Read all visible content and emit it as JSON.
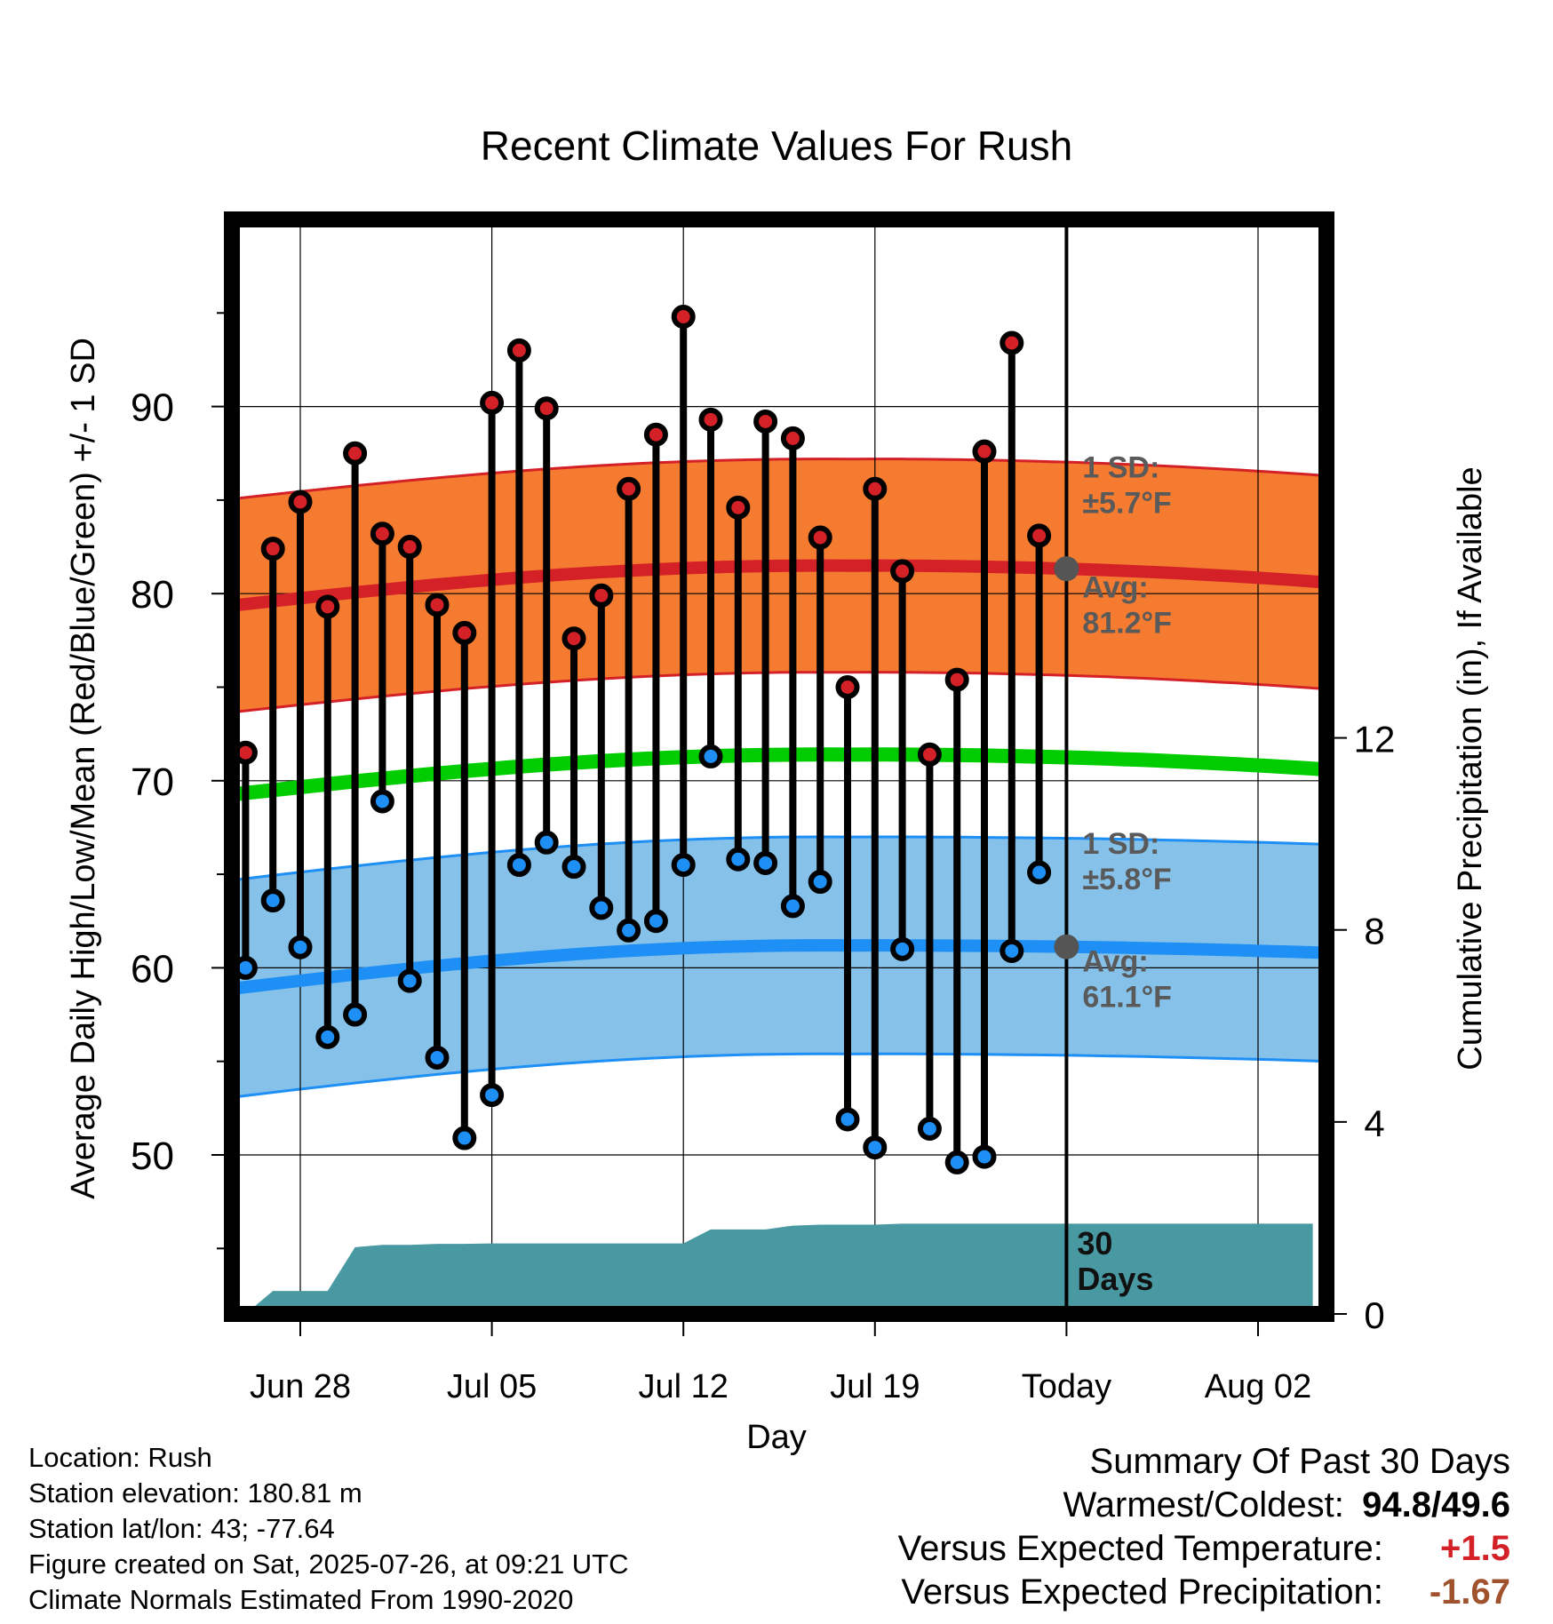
{
  "chart_data": {
    "type": "line",
    "title": "Recent Climate Values For Rush",
    "xlabel": "Day",
    "ylabel": "Average Daily High/Low/Mean (Red/Blue/Green) +/- 1 SD",
    "y2label": "Cumulative Precipitation (in), If Available",
    "ylim": [
      41.5,
      100
    ],
    "y2lim": [
      0,
      22.8
    ],
    "x_tick_labels": [
      "Jun 28",
      "Jul 05",
      "Jul 12",
      "Jul 19",
      "Today",
      "Aug 02"
    ],
    "y_ticks": [
      50,
      60,
      70,
      80,
      90
    ],
    "y2_ticks": [
      0,
      4,
      8,
      12
    ],
    "grid": true,
    "days": [
      "Jun 26",
      "Jun 27",
      "Jun 28",
      "Jun 29",
      "Jun 30",
      "Jul 01",
      "Jul 02",
      "Jul 03",
      "Jul 04",
      "Jul 05",
      "Jul 06",
      "Jul 07",
      "Jul 08",
      "Jul 09",
      "Jul 10",
      "Jul 11",
      "Jul 12",
      "Jul 13",
      "Jul 14",
      "Jul 15",
      "Jul 16",
      "Jul 17",
      "Jul 18",
      "Jul 19",
      "Jul 20",
      "Jul 21",
      "Jul 22",
      "Jul 23",
      "Jul 24",
      "Jul 25"
    ],
    "daily_high": [
      71.5,
      82.4,
      84.9,
      79.3,
      87.5,
      83.2,
      82.5,
      79.4,
      77.9,
      90.2,
      93.0,
      89.9,
      77.6,
      79.9,
      85.6,
      88.5,
      94.8,
      89.3,
      84.6,
      89.2,
      88.3,
      83.0,
      75.0,
      85.6,
      81.2,
      71.4,
      75.4,
      87.6,
      93.4,
      83.1
    ],
    "daily_low": [
      60.0,
      63.6,
      61.1,
      56.3,
      57.5,
      68.9,
      59.3,
      55.2,
      50.9,
      53.2,
      65.5,
      66.7,
      65.4,
      63.2,
      62.0,
      62.5,
      65.5,
      71.3,
      65.8,
      65.6,
      63.3,
      64.6,
      51.9,
      50.4,
      61.0,
      51.4,
      49.6,
      49.9,
      60.9,
      65.1
    ],
    "normal_mean": {
      "start": 69.0,
      "peak": 71.4,
      "end": 70.6
    },
    "normal_high": {
      "start": 79.1,
      "peak": 81.5,
      "end": 80.6,
      "sd": 5.7
    },
    "normal_low": {
      "start": 58.6,
      "peak": 61.2,
      "end": 60.8,
      "sd": 5.8
    },
    "cumulative_precip": {
      "days": [
        "Jun 25",
        "Jun 26",
        "Jun 27",
        "Jun 28",
        "Jun 29",
        "Jun 30",
        "Jul 01",
        "Jul 02",
        "Jul 03",
        "Jul 04",
        "Jul 05",
        "Jul 06",
        "Jul 07",
        "Jul 08",
        "Jul 09",
        "Jul 10",
        "Jul 11",
        "Jul 12",
        "Jul 13",
        "Jul 14",
        "Jul 15",
        "Jul 16",
        "Jul 17",
        "Jul 18",
        "Jul 19",
        "Jul 20",
        "Jul 21",
        "Jul 22",
        "Jul 23",
        "Jul 24",
        "Jul 25",
        "Aug 04"
      ],
      "values": [
        0,
        0,
        0.48,
        0.48,
        0.48,
        1.39,
        1.44,
        1.44,
        1.46,
        1.46,
        1.47,
        1.47,
        1.47,
        1.47,
        1.47,
        1.47,
        1.47,
        1.47,
        1.76,
        1.76,
        1.76,
        1.84,
        1.86,
        1.86,
        1.86,
        1.88,
        1.88,
        1.88,
        1.88,
        1.88,
        1.88,
        1.88
      ]
    },
    "annotations": {
      "high_sd": [
        "1 SD:",
        "±5.7°F"
      ],
      "high_avg": [
        "Avg:",
        "81.2°F"
      ],
      "low_sd": [
        "1 SD:",
        "±5.8°F"
      ],
      "low_avg": [
        "Avg:",
        "61.1°F"
      ],
      "precip_window": [
        "30",
        "Days"
      ]
    },
    "colors": {
      "high_band": "#f47b30",
      "high_line": "#d42027",
      "low_band": "#85c1e9",
      "low_line": "#1e8ff5",
      "mean_line": "#00cc00",
      "precip": "#4899a1",
      "annotation": "#5a5a5a"
    }
  },
  "footer": {
    "location": "Location: Rush",
    "elevation": "Station elevation: 180.81 m",
    "latlon": "Station lat/lon: 43; -77.64",
    "created": "Figure created on Sat, 2025-07-26, at 09:21 UTC",
    "normals": "Climate Normals Estimated From 1990-2020"
  },
  "summary": {
    "title": "Summary Of Past 30 Days",
    "warm_label": "Warmest/Coldest:",
    "warm_value": "94.8",
    "cold_value": "49.6",
    "temp_label": "Versus Expected Temperature:",
    "temp_value": "+1.5",
    "temp_color": "#d42027",
    "precip_label": "Versus Expected Precipitation:",
    "precip_value": "-1.67",
    "precip_color": "#a0522d"
  }
}
